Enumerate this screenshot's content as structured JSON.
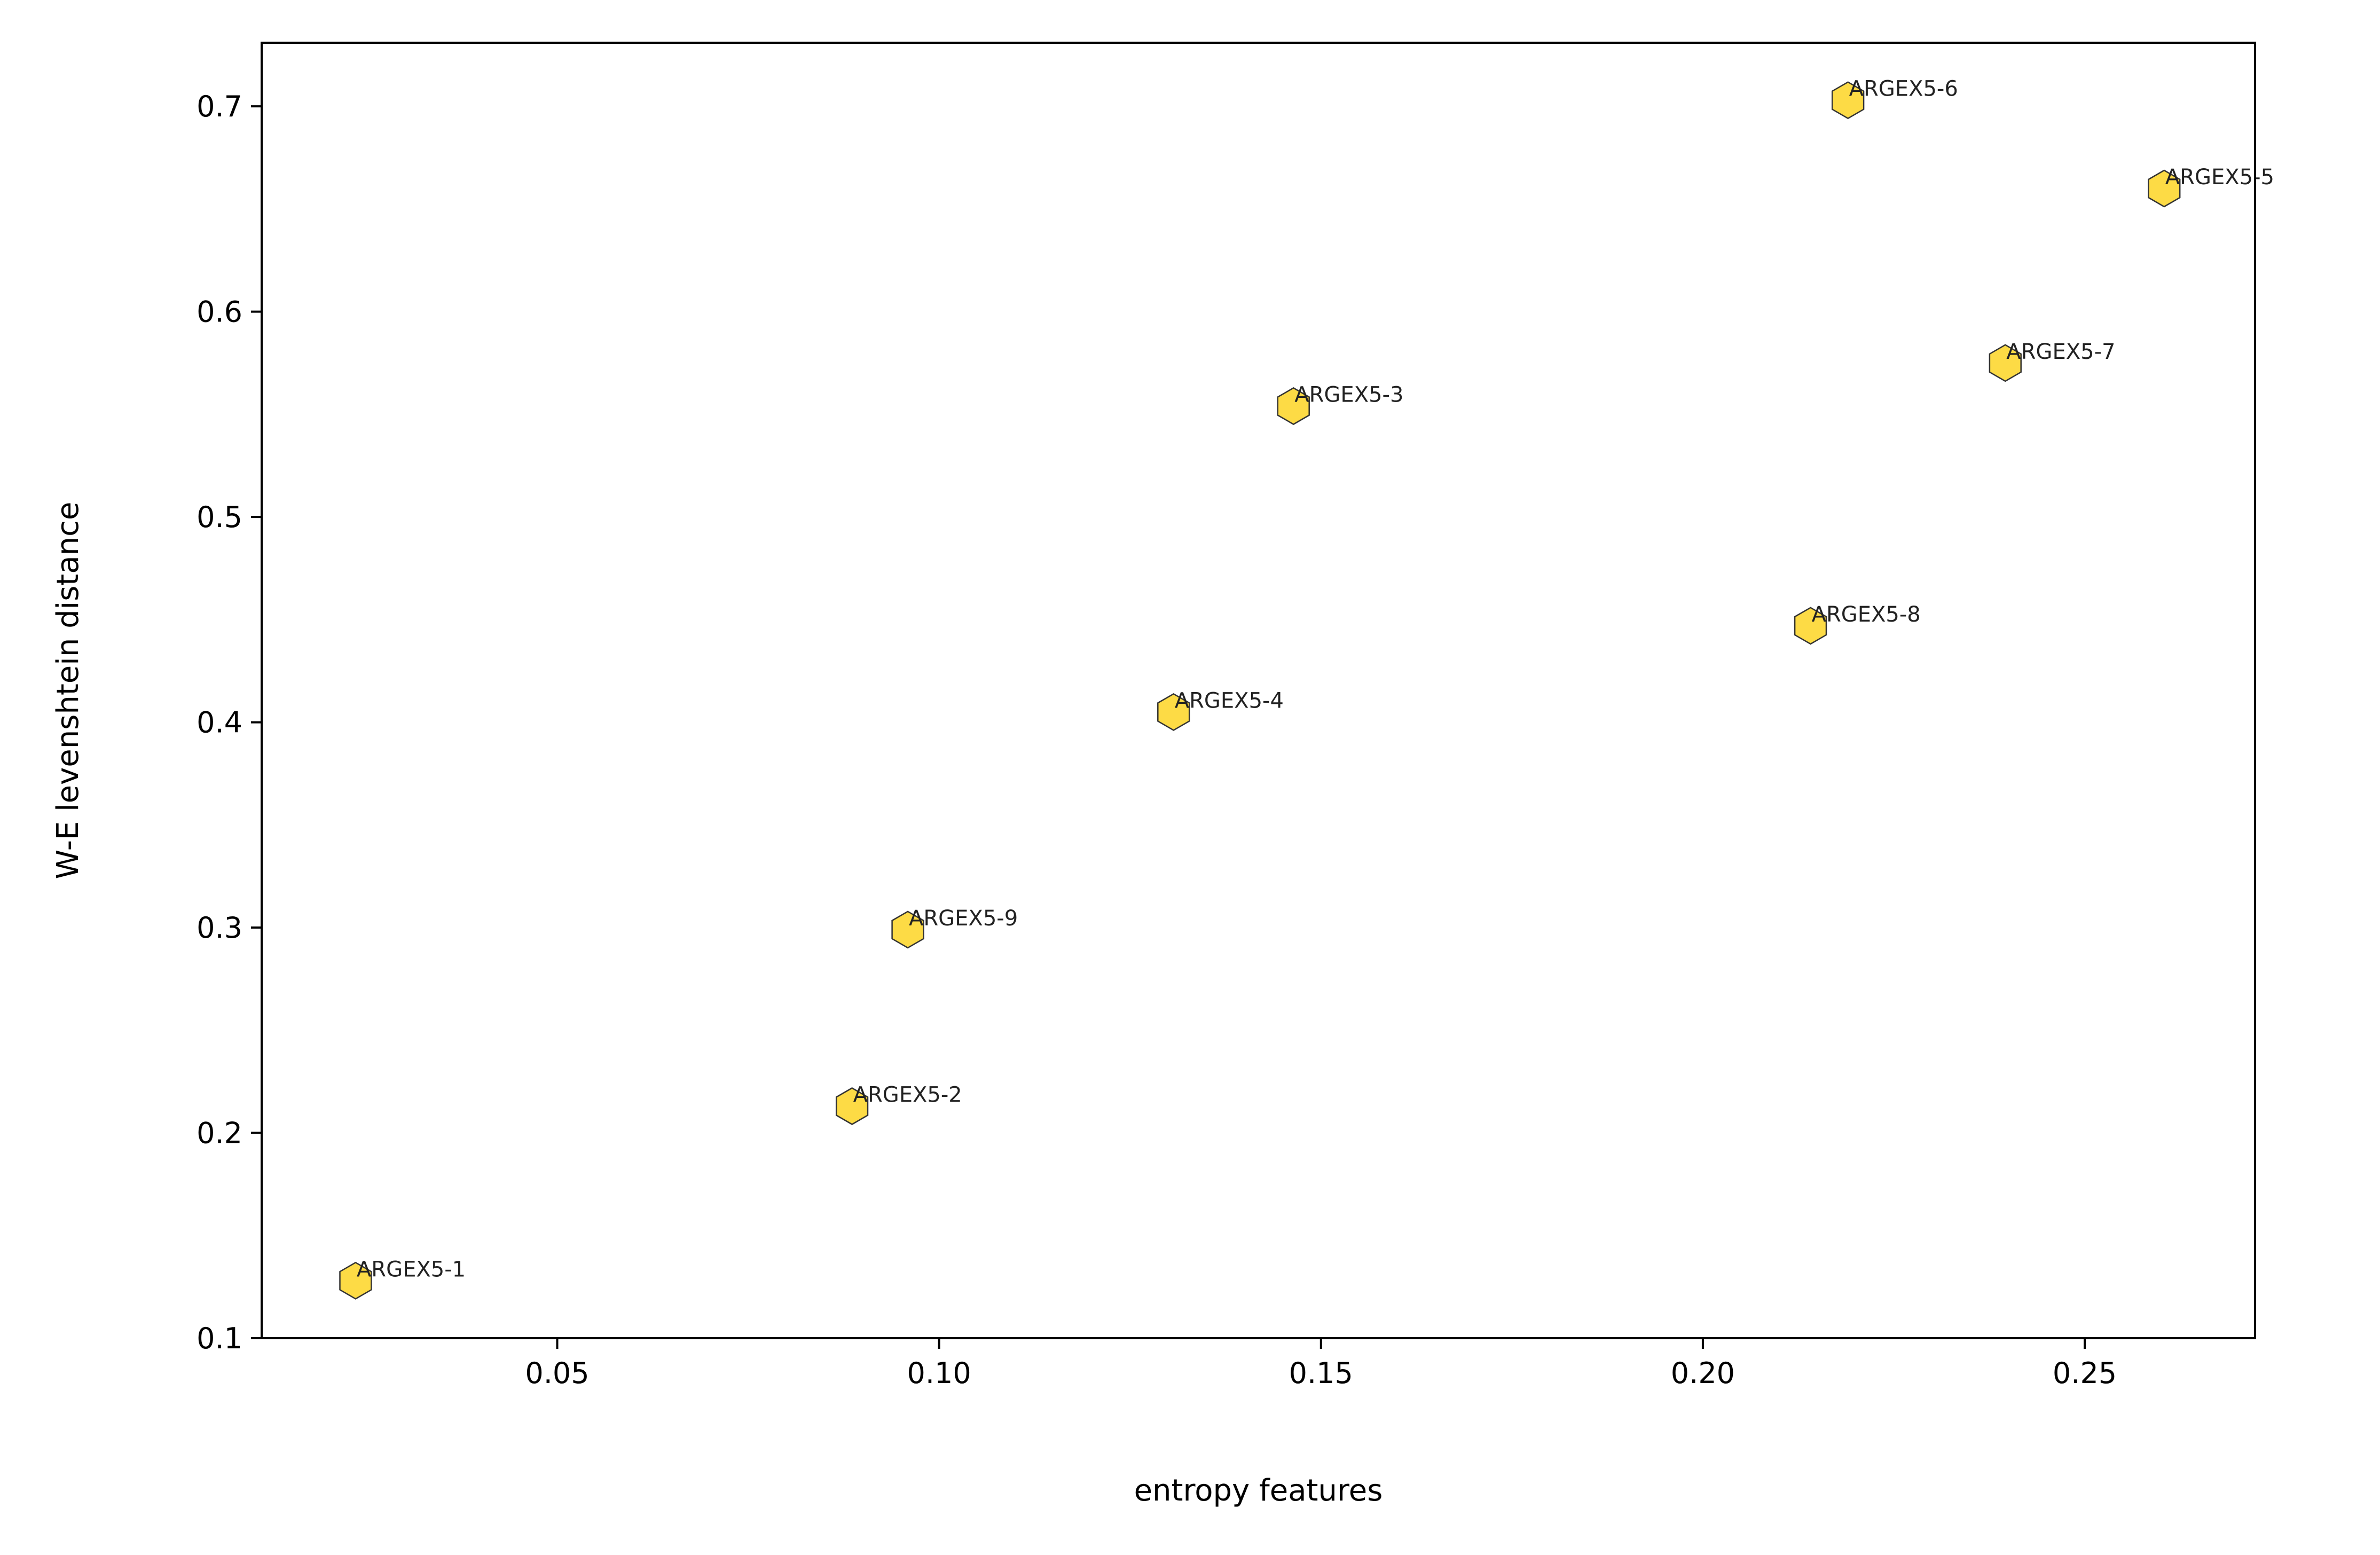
{
  "chart_data": {
    "type": "scatter",
    "title": "",
    "xlabel": "entropy features",
    "ylabel": "W-E levenshtein distance",
    "xlim": [
      0.0113,
      0.2723
    ],
    "ylim": [
      0.1,
      0.731
    ],
    "xticks": [
      0.05,
      0.1,
      0.15,
      0.2,
      0.25
    ],
    "xtick_labels": [
      "0.05",
      "0.10",
      "0.15",
      "0.20",
      "0.25"
    ],
    "yticks": [
      0.1,
      0.2,
      0.3,
      0.4,
      0.5,
      0.6,
      0.7
    ],
    "ytick_labels": [
      "0.1",
      "0.2",
      "0.3",
      "0.4",
      "0.5",
      "0.6",
      "0.7"
    ],
    "grid": false,
    "marker": "hexagon",
    "marker_color": "#FDD835",
    "marker_edge_color": "#333333",
    "points": [
      {
        "label": "ARGEX5-1",
        "x": 0.0236,
        "y": 0.128
      },
      {
        "label": "ARGEX5-2",
        "x": 0.0886,
        "y": 0.213
      },
      {
        "label": "ARGEX5-9",
        "x": 0.0959,
        "y": 0.299
      },
      {
        "label": "ARGEX5-4",
        "x": 0.1307,
        "y": 0.405
      },
      {
        "label": "ARGEX5-3",
        "x": 0.1464,
        "y": 0.554
      },
      {
        "label": "ARGEX5-8",
        "x": 0.2141,
        "y": 0.447
      },
      {
        "label": "ARGEX5-6",
        "x": 0.219,
        "y": 0.703
      },
      {
        "label": "ARGEX5-7",
        "x": 0.2396,
        "y": 0.575
      },
      {
        "label": "ARGEX5-5",
        "x": 0.2604,
        "y": 0.66
      }
    ]
  }
}
